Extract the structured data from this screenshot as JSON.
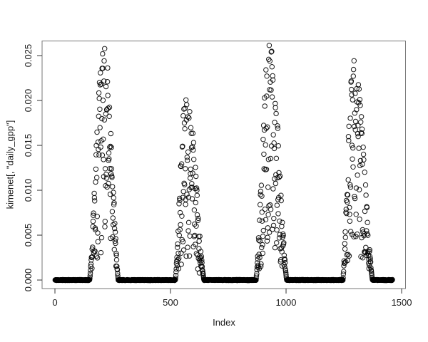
{
  "figure": {
    "background": "#ffffff"
  },
  "chart_data": {
    "type": "scatter",
    "title": "",
    "xlabel": "Index",
    "ylabel": "kimenet[, \"daily_gpp\"]",
    "grid": "off",
    "legend": "none",
    "marker": {
      "shape": "open-circle",
      "radius_px": 3.2,
      "color": "#000000",
      "stroke_px": 1
    },
    "axis_color": "#777777",
    "tick_color": "#333333",
    "text_color": "#1a1a1a",
    "xlim": [
      -55.6,
      1516.9
    ],
    "ylim": [
      -0.00095,
      0.02663
    ],
    "xticks": {
      "values": [
        0,
        500,
        1000,
        1500
      ],
      "labels": [
        "0",
        "500",
        "1000",
        "1500"
      ]
    },
    "yticks": {
      "values": [
        0,
        0.005,
        0.01,
        0.015,
        0.02,
        0.025
      ],
      "labels": [
        "0.000",
        "0.005",
        "0.010",
        "0.015",
        "0.020",
        "0.025"
      ]
    },
    "n_days": 1460,
    "seed": 11,
    "series": [
      {
        "name": "daily_gpp",
        "baseline_value": 0,
        "flat_jitter": 8e-05,
        "flat_segments": [
          [
            1,
            150
          ],
          [
            274,
            521
          ],
          [
            645,
            870
          ],
          [
            1003,
            1246
          ],
          [
            1374,
            1460
          ]
        ],
        "peaks": [
          {
            "x_start": 150,
            "x_max": 212,
            "x_end": 274,
            "y_max": 0.0256
          },
          {
            "x_start": 521,
            "x_max": 568,
            "x_end": 645,
            "y_max": 0.0206
          },
          {
            "x_start": 870,
            "x_max": 928,
            "x_end": 1003,
            "y_max": 0.0256
          },
          {
            "x_start": 1246,
            "x_max": 1293,
            "x_end": 1374,
            "y_max": 0.0247
          }
        ],
        "scatter_model": {
          "dip_fraction": 0.88,
          "dip_skew_exp": 1.6,
          "tight_below_env": 0.005,
          "mult_noise": 0.08
        }
      }
    ]
  }
}
